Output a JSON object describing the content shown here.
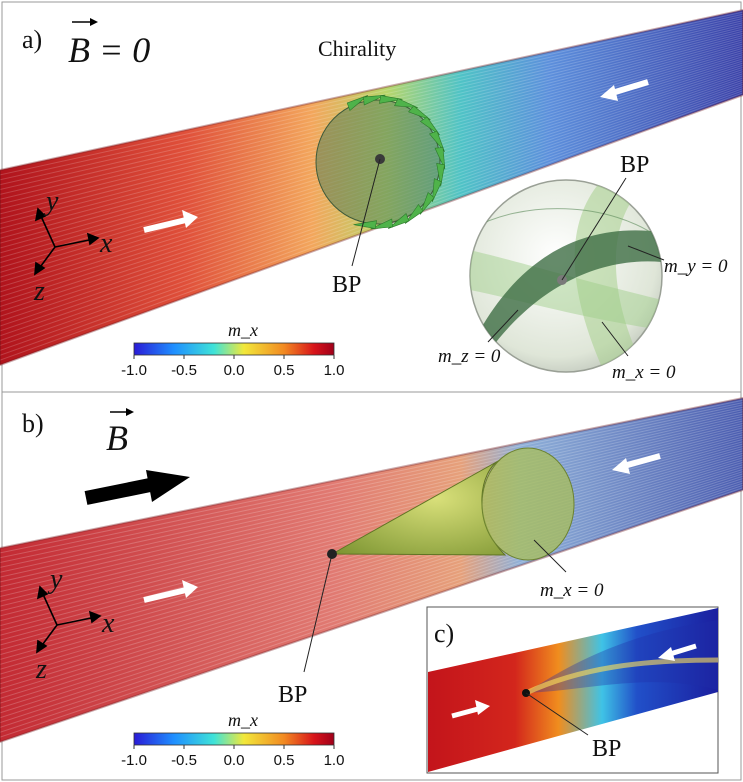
{
  "panels": {
    "a": {
      "label": "a)",
      "field": "B = 0",
      "chirality_label": "Chirality",
      "bp_label": "BP",
      "inset_bp_label": "BP",
      "my_label": "m_y = 0",
      "mz_label": "m_z = 0",
      "mx_label": "m_x = 0"
    },
    "b": {
      "label": "b)",
      "field": "B",
      "bp_label": "BP",
      "mx_label": "m_x = 0"
    },
    "c": {
      "label": "c)",
      "bp_label": "BP"
    }
  },
  "axes_glyphs": {
    "x": "x",
    "y": "y",
    "z": "z"
  },
  "colorbar": {
    "title": "m_x",
    "ticks": [
      "-1.0",
      "-0.5",
      "0.0",
      "0.5",
      "1.0"
    ],
    "colors": [
      "#2a1bd6",
      "#1f8fff",
      "#3fe3d8",
      "#f2e83a",
      "#f28a22",
      "#d8141a",
      "#a0001a"
    ]
  }
}
